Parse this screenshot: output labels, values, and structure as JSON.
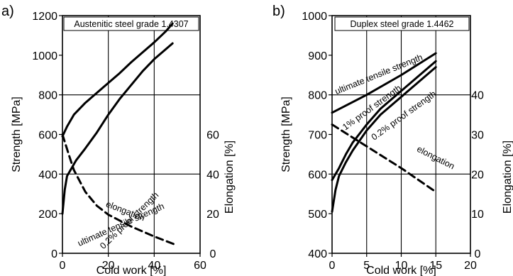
{
  "chart_data": [
    {
      "type": "line",
      "panel_label": "a)",
      "title": "Austenitic steel grade 1.4307",
      "xlabel": "Cold work  [%]",
      "ylabel": "Strength  [MPa]",
      "y2label": "Elongation  [%]",
      "xlim": [
        0,
        60
      ],
      "ylim": [
        0,
        1200
      ],
      "y2lim": [
        0,
        120
      ],
      "xticks": [
        "0",
        "20",
        "40",
        "60"
      ],
      "yticks": [
        "0",
        "200",
        "400",
        "600",
        "800",
        "1000",
        "1200"
      ],
      "y2ticks": [
        "0",
        "20",
        "40",
        "60"
      ],
      "grid": true,
      "series": [
        {
          "name": "ultimate tensile strength",
          "axis": "left",
          "style": "solid",
          "x": [
            0,
            2,
            5,
            10,
            15,
            20,
            25,
            30,
            35,
            40,
            45,
            48
          ],
          "y": [
            590,
            640,
            700,
            760,
            810,
            860,
            910,
            965,
            1015,
            1065,
            1120,
            1160
          ]
        },
        {
          "name": "0.2% proof strength",
          "axis": "left",
          "style": "solid",
          "x": [
            0,
            1,
            2,
            4,
            6,
            8,
            10,
            15,
            20,
            25,
            30,
            35,
            40,
            45,
            48
          ],
          "y": [
            200,
            320,
            390,
            430,
            470,
            500,
            530,
            610,
            700,
            780,
            850,
            920,
            980,
            1030,
            1060
          ]
        },
        {
          "name": "elongation",
          "axis": "right",
          "style": "dashed",
          "x": [
            0,
            3,
            5,
            10,
            15,
            20,
            25,
            30,
            40,
            50
          ],
          "y": [
            60,
            49,
            42,
            31,
            24,
            19.5,
            16.5,
            13.5,
            8.5,
            4
          ]
        }
      ]
    },
    {
      "type": "line",
      "panel_label": "b)",
      "title": "Duplex steel grade 1.4462",
      "xlabel": "Cold work  [%]",
      "ylabel": "Strength  [MPa]",
      "y2label": "Elongation  [%]",
      "xlim": [
        0,
        20
      ],
      "ylim": [
        400,
        1000
      ],
      "y2lim": [
        0,
        60
      ],
      "xticks": [
        "0",
        "5",
        "10",
        "15",
        "20"
      ],
      "yticks": [
        "400",
        "500",
        "600",
        "700",
        "800",
        "900",
        "1000"
      ],
      "y2ticks": [
        "0",
        "10",
        "20",
        "30",
        "40"
      ],
      "grid": true,
      "series": [
        {
          "name": "ultimate tensile strength",
          "axis": "left",
          "style": "solid",
          "x": [
            0,
            5,
            10,
            15
          ],
          "y": [
            755,
            800,
            850,
            905
          ]
        },
        {
          "name": "1% proof strength",
          "axis": "left",
          "style": "solid",
          "x": [
            0,
            1,
            2,
            3,
            5,
            7,
            10,
            12,
            15
          ],
          "y": [
            585,
            615,
            650,
            680,
            725,
            765,
            810,
            840,
            885
          ]
        },
        {
          "name": "0.2% proof strength",
          "axis": "left",
          "style": "solid",
          "x": [
            0,
            0.5,
            1,
            2,
            3,
            5,
            7,
            10,
            12,
            15
          ],
          "y": [
            505,
            560,
            595,
            630,
            660,
            710,
            750,
            795,
            825,
            870
          ]
        },
        {
          "name": "elongation",
          "axis": "right",
          "style": "dashed",
          "x": [
            0,
            5,
            10,
            15
          ],
          "y": [
            32.5,
            27,
            21.5,
            15.5
          ]
        }
      ]
    }
  ]
}
